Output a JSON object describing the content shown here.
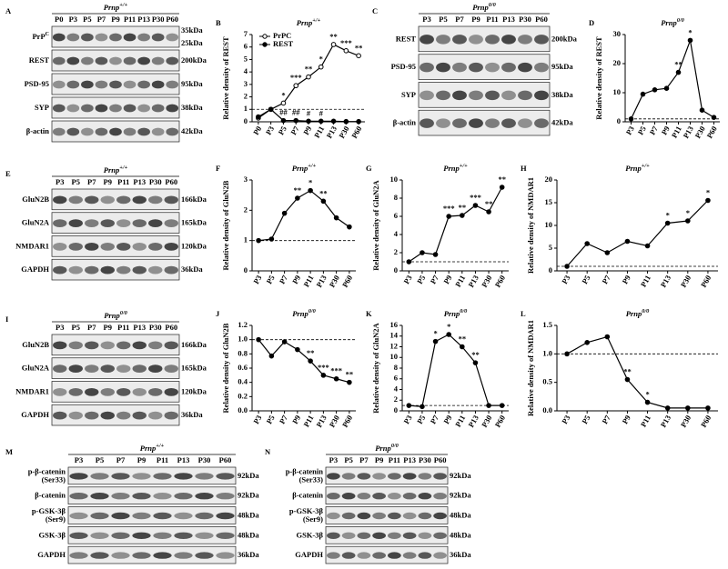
{
  "blots": [
    {
      "label": "A",
      "genotype": [
        "Prnp",
        "+/+"
      ],
      "lanes": [
        "P0",
        "P3",
        "P5",
        "P7",
        "P9",
        "P11",
        "P13",
        "P30",
        "P60"
      ],
      "rows": [
        {
          "name": [
            "PrP"
          ],
          "sup": "C",
          "kda": [
            "35kDa",
            "25kDa"
          ]
        },
        {
          "name": [
            "REST"
          ],
          "kda": [
            "200kDa"
          ]
        },
        {
          "name": [
            "PSD-95"
          ],
          "kda": [
            "95kDa"
          ]
        },
        {
          "name": [
            "SYP"
          ],
          "kda": [
            "38kDa"
          ]
        },
        {
          "name": [
            "β-actin"
          ],
          "kda": [
            "42kDa"
          ]
        }
      ]
    },
    {
      "label": "C",
      "genotype": [
        "Prnp",
        "0/0"
      ],
      "lanes": [
        "P3",
        "P5",
        "P7",
        "P9",
        "P11",
        "P13",
        "P30",
        "P60"
      ],
      "rows": [
        {
          "name": [
            "REST"
          ],
          "kda": [
            "200kDa"
          ]
        },
        {
          "name": [
            "PSD-95"
          ],
          "kda": [
            "95kDa"
          ]
        },
        {
          "name": [
            "SYP"
          ],
          "kda": [
            "38kDa"
          ]
        },
        {
          "name": [
            "β-actin"
          ],
          "kda": [
            "42kDa"
          ]
        }
      ]
    },
    {
      "label": "E",
      "genotype": [
        "Prnp",
        "+/+"
      ],
      "lanes": [
        "P3",
        "P5",
        "P7",
        "P9",
        "P11",
        "P13",
        "P30",
        "P60"
      ],
      "rows": [
        {
          "name": [
            "GluN2B"
          ],
          "kda": [
            "166kDa"
          ]
        },
        {
          "name": [
            "GluN2A"
          ],
          "kda": [
            "165kDa"
          ]
        },
        {
          "name": [
            "NMDAR1"
          ],
          "kda": [
            "120kDa"
          ]
        },
        {
          "name": [
            "GAPDH"
          ],
          "kda": [
            "36kDa"
          ]
        }
      ]
    },
    {
      "label": "I",
      "genotype": [
        "Prnp",
        "0/0"
      ],
      "lanes": [
        "P3",
        "P5",
        "P7",
        "P9",
        "P11",
        "P13",
        "P30",
        "P60"
      ],
      "rows": [
        {
          "name": [
            "GluN2B"
          ],
          "kda": [
            "166kDa"
          ]
        },
        {
          "name": [
            "GluN2A"
          ],
          "kda": [
            "165kDa"
          ]
        },
        {
          "name": [
            "NMDAR1"
          ],
          "kda": [
            "120kDa"
          ]
        },
        {
          "name": [
            "GAPDH"
          ],
          "kda": [
            "36kDa"
          ]
        }
      ]
    },
    {
      "label": "M",
      "genotype": [
        "Prnp",
        "+/+"
      ],
      "lanes": [
        "P3",
        "P5",
        "P7",
        "P9",
        "P11",
        "P13",
        "P30",
        "P60"
      ],
      "rows": [
        {
          "name": [
            "p-β-catenin",
            "(Ser33)"
          ],
          "kda": [
            "92kDa"
          ]
        },
        {
          "name": [
            "β-catenin"
          ],
          "kda": [
            "92kDa"
          ]
        },
        {
          "name": [
            "p-GSK-3β",
            "(Ser9)"
          ],
          "kda": [
            "48kDa"
          ]
        },
        {
          "name": [
            "GSK-3β"
          ],
          "kda": [
            "48kDa"
          ]
        },
        {
          "name": [
            "GAPDH"
          ],
          "kda": [
            "36kDa"
          ]
        }
      ]
    },
    {
      "label": "N",
      "genotype": [
        "Prnp",
        "0/0"
      ],
      "lanes": [
        "P3",
        "P5",
        "P7",
        "P9",
        "P11",
        "P13",
        "P30",
        "P60"
      ],
      "rows": [
        {
          "name": [
            "p-β-catenin",
            "(Ser33)"
          ],
          "kda": [
            "92kDa"
          ]
        },
        {
          "name": [
            "β-catenin"
          ],
          "kda": [
            "92kDa"
          ]
        },
        {
          "name": [
            "p-GSK-3β",
            "(Ser9)"
          ],
          "kda": [
            "48kDa"
          ]
        },
        {
          "name": [
            "GSK-3β"
          ],
          "kda": [
            "48kDa"
          ]
        },
        {
          "name": [
            "GAPDH"
          ],
          "kda": [
            "36kDa"
          ]
        }
      ]
    }
  ],
  "chart_data": [
    {
      "type": "line",
      "label": "B",
      "title": [
        "Prnp",
        "+/+"
      ],
      "y_label": "Relative density of REST",
      "categories": [
        "P0",
        "P3",
        "P5",
        "P7",
        "P9",
        "P11",
        "P13",
        "P30",
        "P60"
      ],
      "series": [
        {
          "name": "PrPC",
          "color": "#000000",
          "marker": "open",
          "values": [
            0.3,
            1,
            1.5,
            2.9,
            3.6,
            4.4,
            6.2,
            5.7,
            5.3
          ]
        },
        {
          "name": "REST",
          "color": "#000000",
          "marker": "filled",
          "values": [
            0.4,
            1,
            0.1,
            0.1,
            0.05,
            0.05,
            0.05,
            0.02,
            0.02
          ]
        }
      ],
      "ylim": [
        0,
        7
      ],
      "yticks": [
        0,
        1,
        2,
        3,
        4,
        5,
        6,
        7
      ],
      "hline": 1,
      "legend": "upper left",
      "annotations": [
        {
          "text": "*",
          "series": 0,
          "index": 2
        },
        {
          "text": "***",
          "series": 0,
          "index": 3
        },
        {
          "text": "**",
          "series": 0,
          "index": 4
        },
        {
          "text": "*",
          "series": 0,
          "index": 5
        },
        {
          "text": "**",
          "series": 0,
          "index": 6
        },
        {
          "text": "***",
          "series": 0,
          "index": 7
        },
        {
          "text": "**",
          "series": 0,
          "index": 8
        },
        {
          "text": "##",
          "series": 1,
          "index": 2
        },
        {
          "text": "##",
          "series": 1,
          "index": 3
        },
        {
          "text": "#",
          "series": 1,
          "index": 4
        },
        {
          "text": "#",
          "series": 1,
          "index": 5
        }
      ]
    },
    {
      "type": "line",
      "label": "D",
      "title": [
        "Prnp",
        "0/0"
      ],
      "y_label": "Relative density of REST",
      "categories": [
        "P3",
        "P5",
        "P7",
        "P9",
        "P11",
        "P13",
        "P30",
        "P60"
      ],
      "series": [
        {
          "name": "REST",
          "color": "#000000",
          "marker": "filled",
          "values": [
            1,
            9.5,
            11,
            11.5,
            17,
            28,
            4,
            1.5
          ]
        }
      ],
      "ylim": [
        0,
        30
      ],
      "yticks": [
        0,
        10,
        20,
        30
      ],
      "hline": 1,
      "annotations": [
        {
          "text": "**",
          "series": 0,
          "index": 4
        },
        {
          "text": "*",
          "series": 0,
          "index": 5
        }
      ]
    },
    {
      "type": "line",
      "label": "F",
      "title": [
        "Prnp",
        "+/+"
      ],
      "y_label": "Relative density of GluN2B",
      "categories": [
        "P3",
        "P5",
        "P7",
        "P9",
        "P11",
        "P13",
        "P30",
        "P60"
      ],
      "series": [
        {
          "name": "GluN2B",
          "color": "#000000",
          "marker": "filled",
          "values": [
            1,
            1.05,
            1.9,
            2.4,
            2.65,
            2.3,
            1.75,
            1.45
          ]
        }
      ],
      "ylim": [
        0,
        3
      ],
      "yticks": [
        0,
        1,
        2,
        3
      ],
      "hline": 1,
      "annotations": [
        {
          "text": "**",
          "series": 0,
          "index": 3
        },
        {
          "text": "*",
          "series": 0,
          "index": 4
        },
        {
          "text": "**",
          "series": 0,
          "index": 5
        }
      ]
    },
    {
      "type": "line",
      "label": "G",
      "title": [
        "Prnp",
        "+/+"
      ],
      "y_label": "Relative density of GluN2A",
      "categories": [
        "P3",
        "P5",
        "P7",
        "P9",
        "P11",
        "P13",
        "P30",
        "P60"
      ],
      "series": [
        {
          "name": "GluN2A",
          "color": "#000000",
          "marker": "filled",
          "values": [
            1,
            2,
            1.8,
            6,
            6.1,
            7.2,
            6.5,
            9.2
          ]
        }
      ],
      "ylim": [
        0,
        10
      ],
      "yticks": [
        0,
        2,
        4,
        6,
        8,
        10
      ],
      "hline": 1,
      "annotations": [
        {
          "text": "***",
          "series": 0,
          "index": 3
        },
        {
          "text": "**",
          "series": 0,
          "index": 4
        },
        {
          "text": "***",
          "series": 0,
          "index": 5
        },
        {
          "text": "**",
          "series": 0,
          "index": 6
        },
        {
          "text": "**",
          "series": 0,
          "index": 7
        }
      ]
    },
    {
      "type": "line",
      "label": "H",
      "title": [
        "Prnp",
        "+/+"
      ],
      "y_label": "Relative density of NMDAR1",
      "categories": [
        "P3",
        "P5",
        "P7",
        "P9",
        "P11",
        "P13",
        "P30",
        "P60"
      ],
      "series": [
        {
          "name": "NMDAR1",
          "color": "#000000",
          "marker": "filled",
          "values": [
            1,
            6,
            4,
            6.5,
            5.5,
            10.5,
            11,
            15.5
          ]
        }
      ],
      "ylim": [
        0,
        20
      ],
      "yticks": [
        0,
        5,
        10,
        15,
        20
      ],
      "hline": 1,
      "annotations": [
        {
          "text": "*",
          "series": 0,
          "index": 5
        },
        {
          "text": "*",
          "series": 0,
          "index": 6
        },
        {
          "text": "*",
          "series": 0,
          "index": 7
        }
      ]
    },
    {
      "type": "line",
      "label": "J",
      "title": [
        "Prnp",
        "0/0"
      ],
      "y_label": "Relative density of GluN2B",
      "categories": [
        "P3",
        "P5",
        "P7",
        "P9",
        "P11",
        "P13",
        "P30",
        "P60"
      ],
      "series": [
        {
          "name": "GluN2B",
          "color": "#000000",
          "marker": "filled",
          "values": [
            1,
            0.77,
            0.97,
            0.86,
            0.7,
            0.5,
            0.45,
            0.4
          ]
        }
      ],
      "ylim": [
        0,
        1.2
      ],
      "yticks": [
        {
          "value": 0,
          "label": "0.0"
        },
        0.2,
        0.4,
        0.6,
        0.8,
        {
          "value": 1,
          "label": "1.0"
        },
        1.2
      ],
      "hline": 1,
      "annotations": [
        {
          "text": "**",
          "series": 0,
          "index": 4
        },
        {
          "text": "***",
          "series": 0,
          "index": 5
        },
        {
          "text": "***",
          "series": 0,
          "index": 6
        },
        {
          "text": "**",
          "series": 0,
          "index": 7
        }
      ]
    },
    {
      "type": "line",
      "label": "K",
      "title": [
        "Prnp",
        "0/0"
      ],
      "y_label": "Relative density of GluN2A",
      "categories": [
        "P3",
        "P5",
        "P7",
        "P9",
        "P11",
        "P13",
        "P30",
        "P60"
      ],
      "series": [
        {
          "name": "GluN2A",
          "color": "#000000",
          "marker": "filled",
          "values": [
            1,
            0.8,
            13,
            14.3,
            12,
            9,
            1,
            1
          ]
        }
      ],
      "ylim": [
        0,
        16
      ],
      "yticks": [
        0,
        2,
        4,
        6,
        8,
        10,
        12,
        14,
        16
      ],
      "hline": 1,
      "annotations": [
        {
          "text": "*",
          "series": 0,
          "index": 2
        },
        {
          "text": "*",
          "series": 0,
          "index": 3
        },
        {
          "text": "**",
          "series": 0,
          "index": 4
        },
        {
          "text": "**",
          "series": 0,
          "index": 5
        }
      ]
    },
    {
      "type": "line",
      "label": "L",
      "title": [
        "Prnp",
        "0/0"
      ],
      "y_label": "Relative density of NMDAR1",
      "categories": [
        "P3",
        "P5",
        "P7",
        "P9",
        "P11",
        "P13",
        "P30",
        "P60"
      ],
      "series": [
        {
          "name": "NMDAR1",
          "color": "#000000",
          "marker": "filled",
          "values": [
            1,
            1.2,
            1.3,
            0.55,
            0.15,
            0.05,
            0.05,
            0.05
          ]
        }
      ],
      "ylim": [
        0,
        1.5
      ],
      "yticks": [
        {
          "value": 0,
          "label": "0.0"
        },
        0.5,
        {
          "value": 1,
          "label": "1.0"
        },
        1.5
      ],
      "hline": 1,
      "annotations": [
        {
          "text": "**",
          "series": 0,
          "index": 3
        },
        {
          "text": "*",
          "series": 0,
          "index": 4
        }
      ]
    }
  ]
}
